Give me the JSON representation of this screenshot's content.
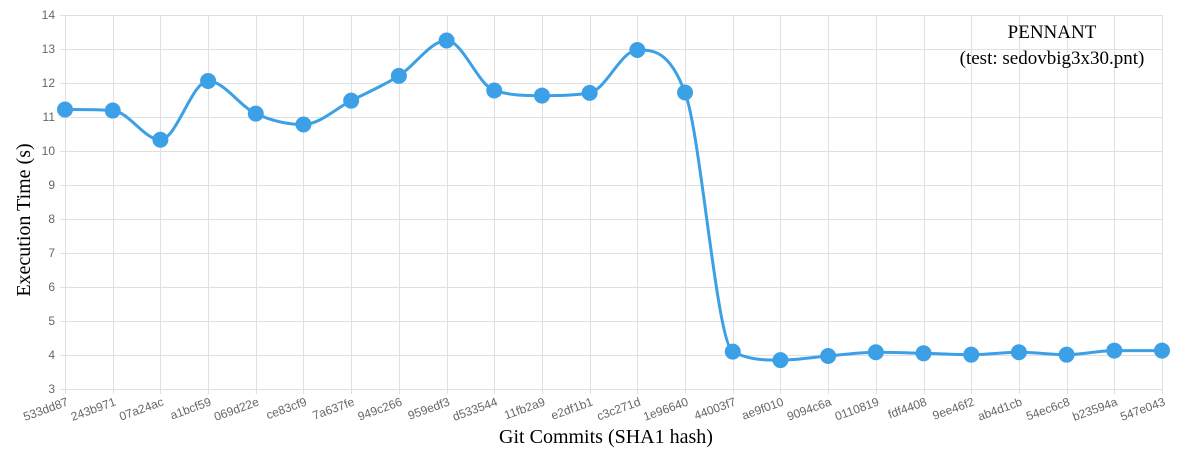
{
  "chart_data": {
    "type": "line",
    "title": "",
    "annotation_lines": [
      "PENNANT",
      "(test: sedovbig3x30.pnt)"
    ],
    "annotation_placement": "top-right",
    "xlabel": "Git Commits (SHA1 hash)",
    "ylabel": "Execution Time (s)",
    "ylim": [
      3,
      14
    ],
    "yticks": [
      3,
      4,
      5,
      6,
      7,
      8,
      9,
      10,
      11,
      12,
      13,
      14
    ],
    "grid": true,
    "legend": "none",
    "categories": [
      "533dd87",
      "243b971",
      "07a24ac",
      "a1bcf59",
      "069d22e",
      "ce83cf9",
      "7a637fe",
      "949c266",
      "959edf3",
      "d533544",
      "11fb2a9",
      "e2df1b1",
      "c3c271d",
      "1e96640",
      "44003f7",
      "ae9f010",
      "9094c6a",
      "0110819",
      "fdf4408",
      "9ee46f2",
      "ab4d1cb",
      "54ec6c8",
      "b23594a",
      "547e043"
    ],
    "series": [
      {
        "color": "#3ca0e6",
        "values": [
          11.22,
          11.19,
          10.33,
          12.06,
          11.1,
          10.78,
          11.48,
          12.21,
          13.25,
          11.78,
          11.63,
          11.71,
          12.97,
          11.72,
          4.1,
          3.85,
          3.97,
          4.08,
          4.05,
          4.01,
          4.08,
          4.01,
          4.13,
          4.13
        ]
      }
    ]
  }
}
